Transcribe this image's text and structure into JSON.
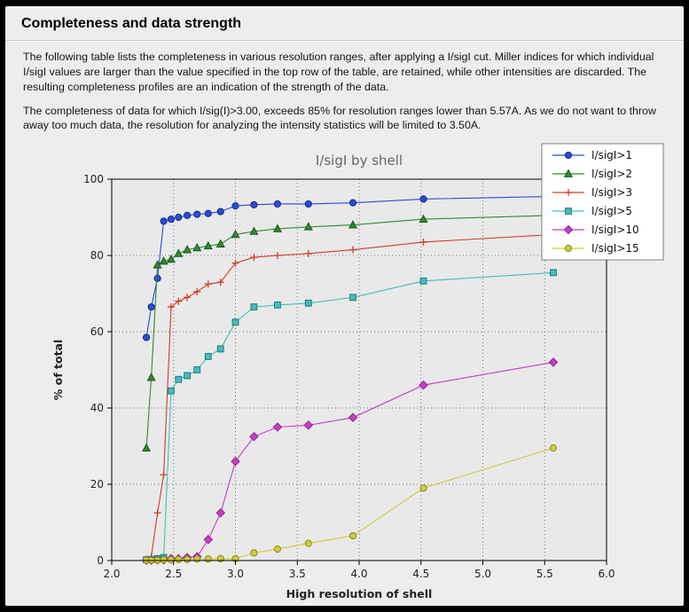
{
  "page": {
    "title": "Completeness and data strength",
    "paragraph1": "The following table lists the completeness in various resolution ranges, after applying a I/sigI cut. Miller indices for which individual I/sigI values are larger than the value specified in the top row of the table, are retained, while other intensities are discarded. The resulting completeness profiles are an indication of the strength of the data.",
    "paragraph2": "The completeness of data for which I/sig(I)>3.00, exceeds  85% for resolution ranges lower than 5.57A. As we do not want to throw away too much data, the resolution for analyzing the intensity statistics will be limited to 3.50A."
  },
  "chart_data": {
    "type": "line",
    "title": "I/sigI by shell",
    "xlabel": "High resolution of shell",
    "ylabel": "% of total",
    "xlim": [
      2.0,
      6.0
    ],
    "ylim": [
      0,
      100
    ],
    "xticks": [
      2.0,
      2.5,
      3.0,
      3.5,
      4.0,
      4.5,
      5.0,
      5.5,
      6.0
    ],
    "yticks": [
      0,
      20,
      40,
      60,
      80,
      100
    ],
    "grid": true,
    "legend_position": "upper right",
    "colors": {
      "plot_bg": "#e9e9e9",
      "grid": "#777777",
      "frame": "#000000",
      "legend_bg": "#ffffff",
      "legend_border": "#808080"
    },
    "x": [
      2.28,
      2.32,
      2.37,
      2.42,
      2.48,
      2.54,
      2.61,
      2.69,
      2.78,
      2.88,
      3.0,
      3.15,
      3.34,
      3.59,
      3.95,
      4.52,
      5.57
    ],
    "series": [
      {
        "name": "I/sigI>1",
        "color": "#2b4bd7",
        "edge": "#18288f",
        "marker": "circle",
        "values": [
          58.5,
          66.5,
          74.0,
          89.0,
          89.5,
          90.0,
          90.5,
          90.8,
          91.0,
          91.5,
          93.0,
          93.3,
          93.5,
          93.5,
          93.8,
          94.8,
          95.5
        ]
      },
      {
        "name": "I/sigI>2",
        "color": "#2e8b2e",
        "edge": "#1c551c",
        "marker": "triangle",
        "values": [
          29.5,
          48.0,
          77.5,
          78.5,
          79.0,
          80.5,
          81.5,
          82.0,
          82.5,
          83.0,
          85.5,
          86.3,
          87.0,
          87.5,
          88.0,
          89.5,
          90.5
        ]
      },
      {
        "name": "I/sigI>3",
        "color": "#d23b2a",
        "edge": "#d23b2a",
        "marker": "plus",
        "values": [
          0.3,
          1.0,
          12.5,
          22.5,
          66.5,
          68.0,
          69.0,
          70.5,
          72.5,
          73.0,
          78.0,
          79.5,
          80.0,
          80.5,
          81.5,
          83.5,
          85.5
        ]
      },
      {
        "name": "I/sigI>5",
        "color": "#45bdbd",
        "edge": "#1f7a7a",
        "marker": "square",
        "values": [
          0.2,
          0.3,
          0.5,
          0.8,
          44.5,
          47.5,
          48.5,
          50.0,
          53.5,
          55.5,
          62.5,
          66.5,
          67.0,
          67.5,
          69.0,
          73.3,
          75.5
        ]
      },
      {
        "name": "I/sigI>10",
        "color": "#c73bc7",
        "edge": "#8e2a8e",
        "marker": "diamond",
        "values": [
          0.1,
          0.1,
          0.2,
          0.2,
          0.5,
          0.5,
          0.8,
          1.0,
          5.5,
          12.5,
          26.0,
          32.5,
          35.0,
          35.5,
          37.5,
          46.0,
          52.0
        ]
      },
      {
        "name": "I/sigI>15",
        "color": "#cdcd3a",
        "edge": "#8a8a1e",
        "marker": "circle",
        "values": [
          0.1,
          0.1,
          0.1,
          0.2,
          0.2,
          0.3,
          0.3,
          0.4,
          0.4,
          0.5,
          0.5,
          2.0,
          3.0,
          4.5,
          6.5,
          19.0,
          29.5
        ]
      }
    ]
  }
}
